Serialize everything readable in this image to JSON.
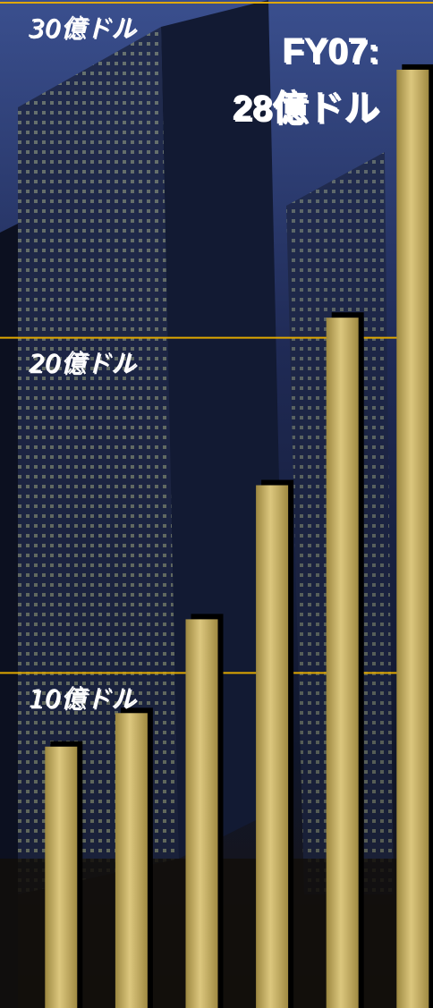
{
  "chart_data": {
    "type": "bar",
    "annotation": [
      "FY07:",
      "28億ドル"
    ],
    "categories": [
      null,
      null,
      null,
      null,
      null,
      null
    ],
    "values": [
      7.8,
      8.8,
      11.6,
      15.6,
      20.6,
      28.0
    ],
    "color": "#dcc77e",
    "ylim": [
      0,
      30
    ],
    "yticks": [
      {
        "value": 10,
        "label": "10億ドル"
      },
      {
        "value": 20,
        "label": "20億ドル"
      },
      {
        "value": 30,
        "label": "30億ドル"
      }
    ],
    "grid": true,
    "grid_color": "#e0a800"
  }
}
